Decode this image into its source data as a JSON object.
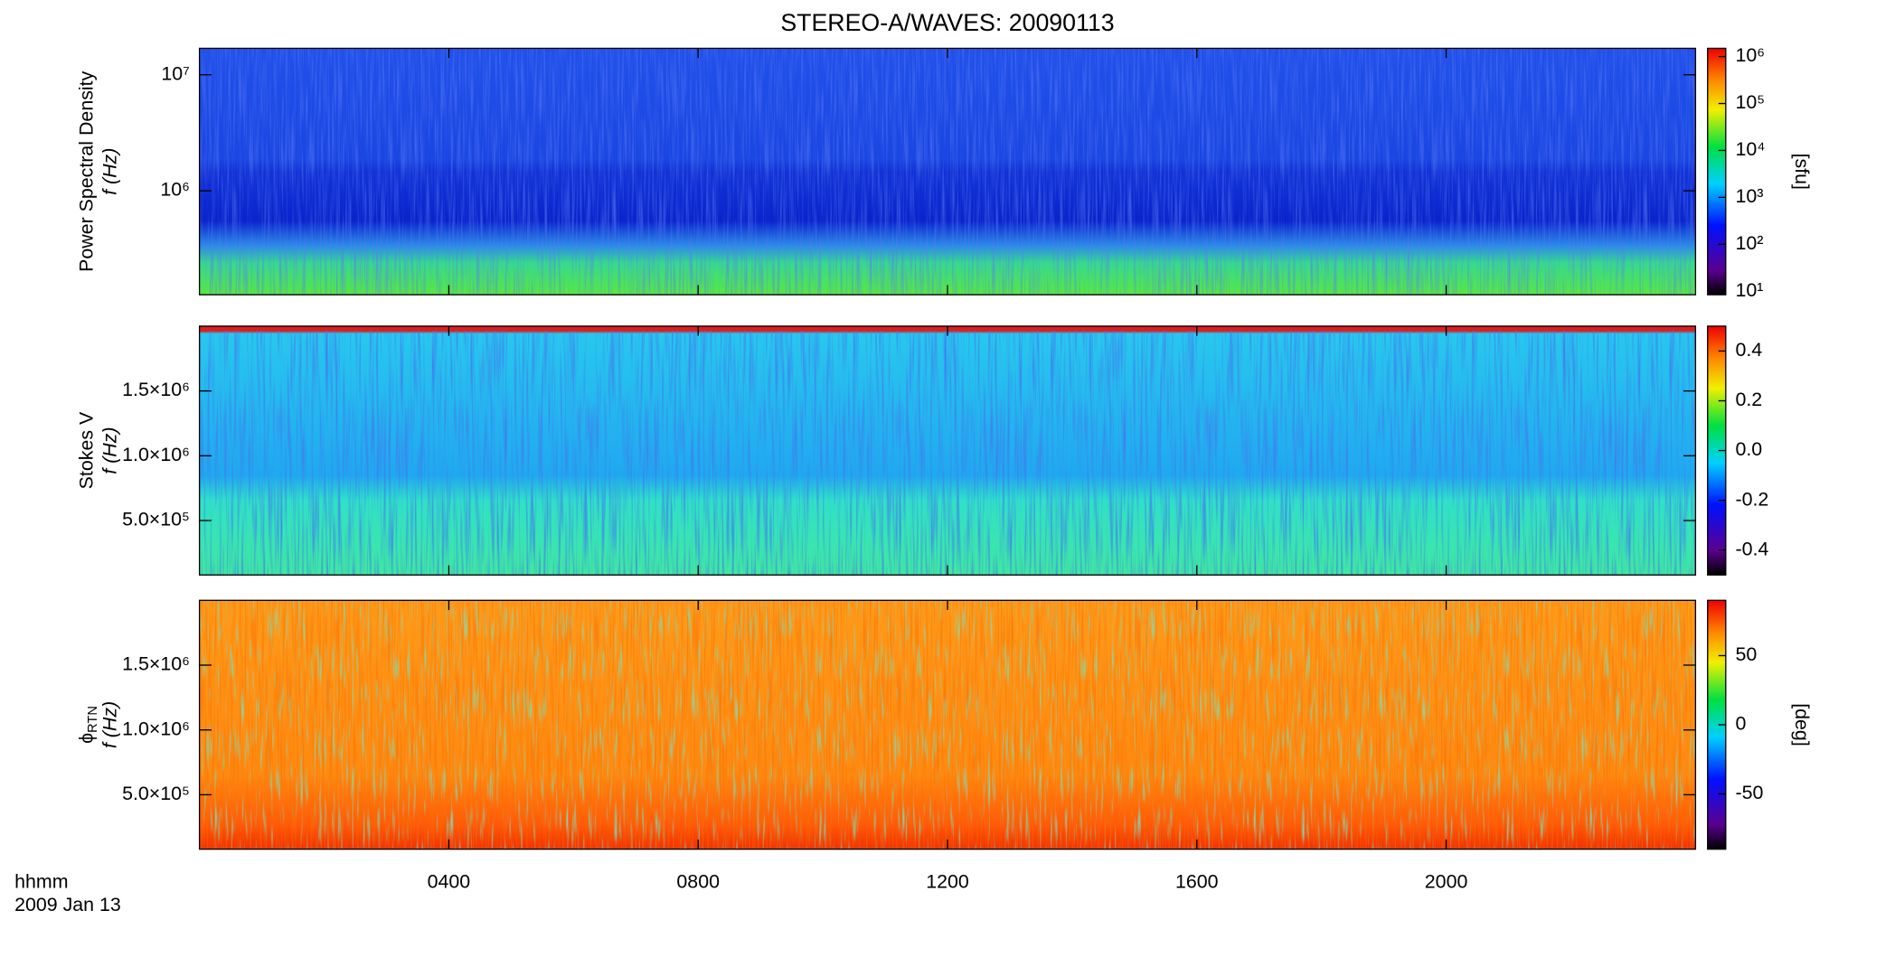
{
  "chart_data": {
    "type": "spectrogram",
    "title": "STEREO-A/WAVES: 20090113",
    "x_label": "hhmm",
    "date": "2009 Jan 13",
    "xlim": [
      0,
      24
    ],
    "xticks": [
      {
        "value": 4,
        "label": "0400"
      },
      {
        "value": 8,
        "label": "0800"
      },
      {
        "value": 12,
        "label": "1200"
      },
      {
        "value": 16,
        "label": "1600"
      },
      {
        "value": 20,
        "label": "2000"
      }
    ],
    "panels": [
      {
        "y_label": "Power Spectral Density",
        "y_label2": "f (Hz)",
        "log_y": true,
        "ylim": [
          127000,
          16900000
        ],
        "yticks": [
          {
            "value": 1000000,
            "label": "10⁶"
          },
          {
            "value": 10000000,
            "label": "10⁷"
          }
        ],
        "colorbar": {
          "label": "[sfu]",
          "log": true,
          "lim": [
            8.4,
            1500000
          ],
          "ticks": [
            {
              "value": 10,
              "label": "10¹"
            },
            {
              "value": 100,
              "label": "10²"
            },
            {
              "value": 1000,
              "label": "10³"
            },
            {
              "value": 10000,
              "label": "10⁴"
            },
            {
              "value": 100000,
              "label": "10⁵"
            },
            {
              "value": 1000000,
              "label": "10⁶"
            }
          ]
        }
      },
      {
        "y_label": "Stokes V",
        "y_label2": "f (Hz)",
        "log_y": false,
        "ylim": [
          80000,
          2000000
        ],
        "yticks": [
          {
            "value": 500000,
            "label": "5.0×10⁵"
          },
          {
            "value": 1000000,
            "label": "1.0×10⁶"
          },
          {
            "value": 1500000,
            "label": "1.5×10⁶"
          }
        ],
        "colorbar": {
          "label": "",
          "log": false,
          "lim": [
            -0.5,
            0.5
          ],
          "ticks": [
            -0.4,
            -0.2,
            {
              "value": 0,
              "label": "0.0"
            },
            0.2,
            0.4
          ]
        }
      },
      {
        "y_label": "ϕ",
        "y_label_sub": "RTN",
        "y_label2": "f (Hz)",
        "log_y": false,
        "ylim": [
          80000,
          2000000
        ],
        "yticks": [
          {
            "value": 500000,
            "label": "5.0×10⁵"
          },
          {
            "value": 1000000,
            "label": "1.0×10⁶"
          },
          {
            "value": 1500000,
            "label": "1.5×10⁶"
          }
        ],
        "colorbar": {
          "label": "[deg]",
          "log": false,
          "lim": [
            -90,
            90
          ],
          "ticks": [
            -50,
            0,
            50
          ]
        }
      }
    ]
  }
}
